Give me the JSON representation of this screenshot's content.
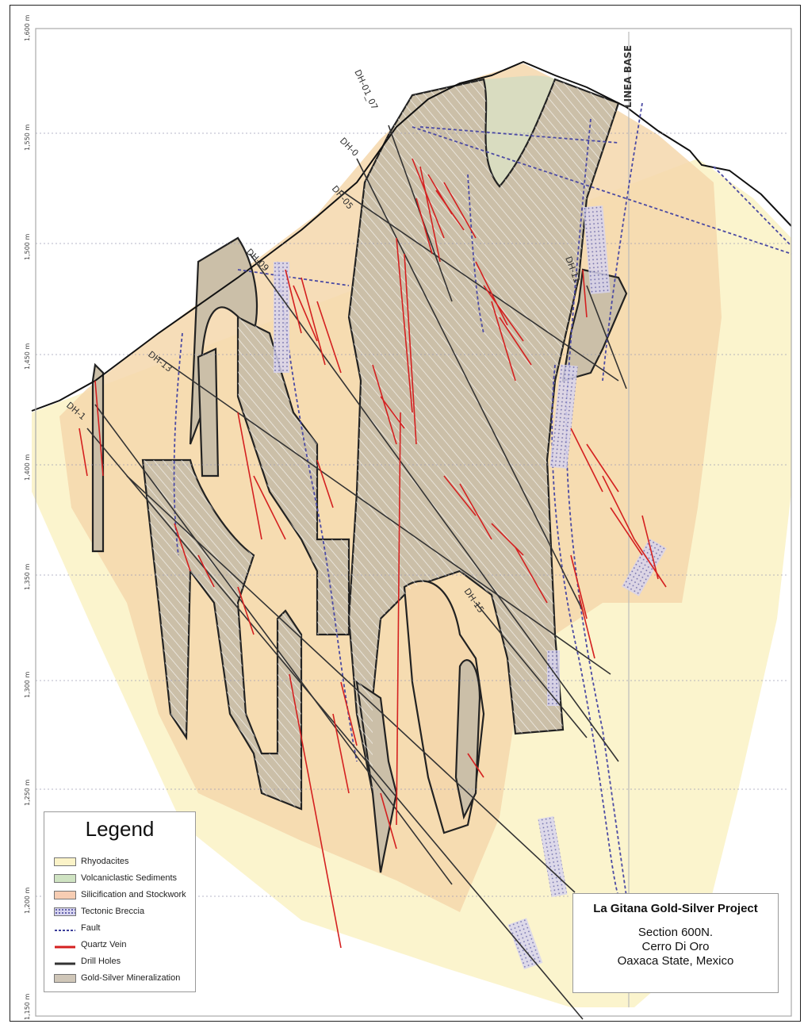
{
  "map": {
    "elevation_labels": [
      "1,600 m",
      "1,550 m",
      "1,500 m",
      "1,450 m",
      "1,400 m",
      "1,350 m",
      "1,300 m",
      "1,250 m",
      "1,200 m",
      "1,150 m"
    ],
    "drill_hole_labels": [
      "DH-01_07",
      "DH-0",
      "DH-05",
      "DH-09",
      "DH-13",
      "DH-1",
      "DH-15",
      "DH-11"
    ],
    "reference_line_label": "LINEA  BASE"
  },
  "legend": {
    "title": "Legend",
    "items": [
      {
        "label": "Rhyodacites",
        "color": "#fbf3c8"
      },
      {
        "label": "Volcaniclastic Sediments",
        "color": "#cfe3c2"
      },
      {
        "label": "Silicification and Stockwork",
        "color": "#f7cdb3"
      },
      {
        "label": "Tectonic Breccia",
        "color": "#c8c6e8"
      },
      {
        "label": "Fault",
        "color": "#3c3f9a"
      },
      {
        "label": "Quartz Vein",
        "color": "#d42020"
      },
      {
        "label": "Drill Holes",
        "color": "#333333"
      },
      {
        "label": "Gold-Silver Mineralization",
        "color": "#cfc6b8"
      }
    ]
  },
  "title_block": {
    "project_title": "La Gitana Gold-Silver Project",
    "section": "Section 600N.",
    "location_1": "Cerro Di Oro",
    "location_2": "Oaxaca State, Mexico"
  }
}
